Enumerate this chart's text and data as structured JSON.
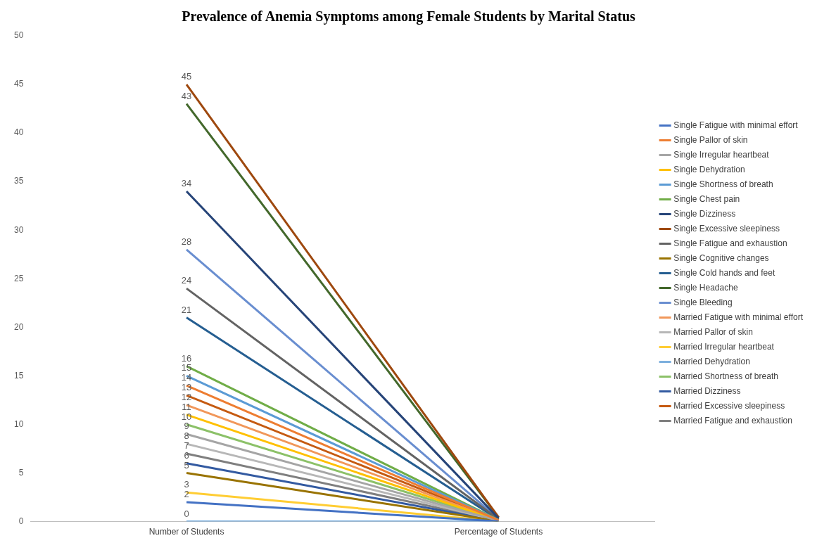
{
  "chart_data": {
    "type": "line",
    "title": "Prevalence of Anemia Symptoms among Female Students by Marital Status",
    "categories": [
      "Number of Students",
      "Percentage of Students"
    ],
    "ylim": [
      0,
      50
    ],
    "yticks": [
      0,
      5,
      10,
      15,
      20,
      25,
      30,
      35,
      40,
      45,
      50
    ],
    "grid": false,
    "legend": "right",
    "marker": "none",
    "series": [
      {
        "name": "Single Fatigue with minimal effort",
        "color": "#4472c4",
        "values": [
          2,
          0.02
        ],
        "value_labels": [
          "2",
          null
        ]
      },
      {
        "name": "Single Pallor of skin",
        "color": "#ed7d31",
        "values": [
          14,
          0.14
        ],
        "value_labels": [
          "14",
          null
        ]
      },
      {
        "name": "Single Irregular heartbeat",
        "color": "#a5a5a5",
        "values": [
          9,
          0.09
        ],
        "value_labels": [
          "9",
          null
        ]
      },
      {
        "name": "Single Dehydration",
        "color": "#ffc000",
        "values": [
          11,
          0.11
        ],
        "value_labels": [
          "11",
          null
        ]
      },
      {
        "name": "Single Shortness of breath",
        "color": "#5b9bd5",
        "values": [
          15,
          0.15
        ],
        "value_labels": [
          "15",
          null
        ]
      },
      {
        "name": "Single Chest pain",
        "color": "#70ad47",
        "values": [
          16,
          0.16
        ],
        "value_labels": [
          "16",
          null
        ]
      },
      {
        "name": "Single Dizziness",
        "color": "#264478",
        "values": [
          34,
          0.34
        ],
        "value_labels": [
          "34",
          null
        ]
      },
      {
        "name": "Single Excessive sleepiness",
        "color": "#9e480e",
        "values": [
          45,
          0.45
        ],
        "value_labels": [
          "45",
          null
        ]
      },
      {
        "name": "Single Fatigue and exhaustion",
        "color": "#636363",
        "values": [
          24,
          0.24
        ],
        "value_labels": [
          "24",
          null
        ]
      },
      {
        "name": "Single Cognitive changes",
        "color": "#997300",
        "values": [
          5,
          0.05
        ],
        "value_labels": [
          "5",
          null
        ]
      },
      {
        "name": "Single Cold hands and feet",
        "color": "#255e91",
        "values": [
          21,
          0.21
        ],
        "value_labels": [
          "21",
          null
        ]
      },
      {
        "name": "Single Headache",
        "color": "#43682b",
        "values": [
          43,
          0.43
        ],
        "value_labels": [
          "43",
          null
        ]
      },
      {
        "name": "Single Bleeding",
        "color": "#698ed0",
        "values": [
          28,
          0.28
        ],
        "value_labels": [
          "28",
          null
        ]
      },
      {
        "name": "Married Fatigue with minimal effort",
        "color": "#f1975a",
        "values": [
          12,
          0.12
        ],
        "value_labels": [
          "12",
          null
        ]
      },
      {
        "name": "Married Pallor of skin",
        "color": "#b7b7b7",
        "values": [
          8,
          0.08
        ],
        "value_labels": [
          "8",
          null
        ]
      },
      {
        "name": "Married Irregular heartbeat",
        "color": "#ffcd33",
        "values": [
          3,
          0.03
        ],
        "value_labels": [
          "3",
          null
        ]
      },
      {
        "name": "Married Dehydration",
        "color": "#7cafdd",
        "values": [
          0,
          0
        ],
        "value_labels": [
          "0",
          null
        ]
      },
      {
        "name": "Married Shortness of breath",
        "color": "#8cc168",
        "values": [
          10,
          0.1
        ],
        "value_labels": [
          "10",
          null
        ]
      },
      {
        "name": "Married Dizziness",
        "color": "#335aa1",
        "values": [
          6,
          0.06
        ],
        "value_labels": [
          "6",
          null
        ]
      },
      {
        "name": "Married Excessive sleepiness",
        "color": "#c55a11",
        "values": [
          13,
          0.13
        ],
        "value_labels": [
          "13",
          null
        ]
      },
      {
        "name": "Married Fatigue and exhaustion",
        "color": "#7f7f7f",
        "values": [
          7,
          0.07
        ],
        "value_labels": [
          "7",
          null
        ]
      }
    ]
  }
}
